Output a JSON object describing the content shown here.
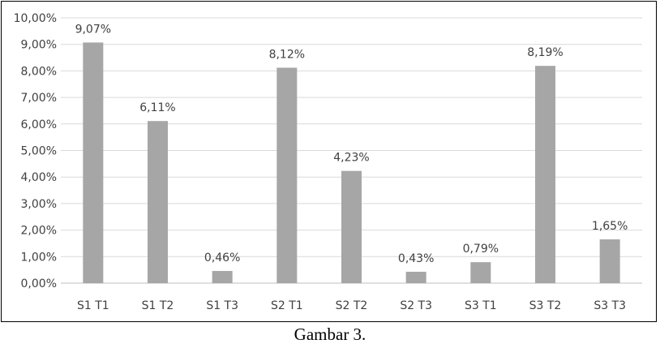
{
  "caption": "Gambar 3.",
  "colors": {
    "bar": "#a6a6a6",
    "grid": "#d9d9d9",
    "axis": "#bfbfbf",
    "text": "#404040"
  },
  "chart_data": {
    "type": "bar",
    "categories": [
      "S1 T1",
      "S1 T2",
      "S1 T3",
      "S2 T1",
      "S2 T2",
      "S2 T3",
      "S3 T1",
      "S3 T2",
      "S3 T3"
    ],
    "values": [
      9.07,
      6.11,
      0.46,
      8.12,
      4.23,
      0.43,
      0.79,
      8.19,
      1.65
    ],
    "data_labels": [
      "9,07%",
      "6,11%",
      "0,46%",
      "8,12%",
      "4,23%",
      "0,43%",
      "0,79%",
      "8,19%",
      "1,65%"
    ],
    "ylim": [
      0,
      10
    ],
    "yticks": [
      0,
      1,
      2,
      3,
      4,
      5,
      6,
      7,
      8,
      9,
      10
    ],
    "ytick_labels": [
      "0,00%",
      "1,00%",
      "2,00%",
      "3,00%",
      "4,00%",
      "5,00%",
      "6,00%",
      "7,00%",
      "8,00%",
      "9,00%",
      "10,00%"
    ],
    "grid": true,
    "legend": "none",
    "title": "",
    "xlabel": "",
    "ylabel": ""
  }
}
